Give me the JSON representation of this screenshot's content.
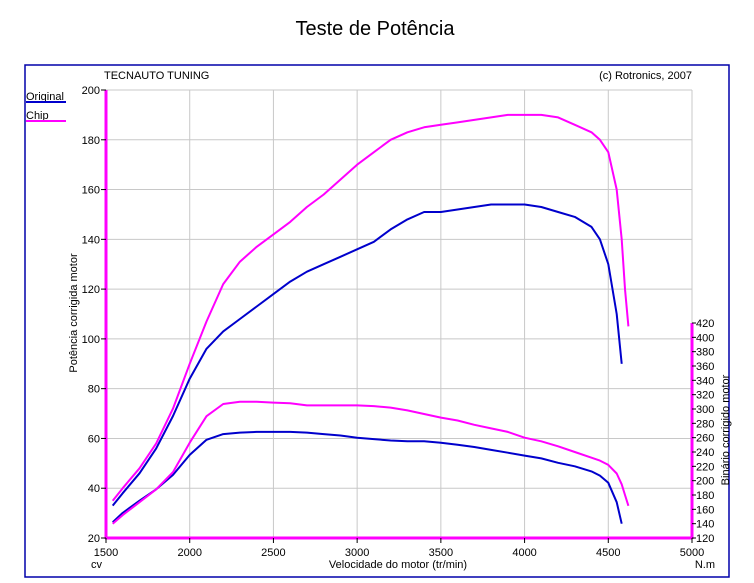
{
  "page": {
    "title": "Teste de Potência",
    "header_left": "TECNAUTO TUNING",
    "header_right": "(c) Rotronics, 2007"
  },
  "legend": [
    {
      "label": "Original",
      "color": "#0000cc"
    },
    {
      "label": "Chip",
      "color": "#ff00ff"
    }
  ],
  "colors": {
    "frame": "#0000aa",
    "grid": "#c8c8c8",
    "axis_magenta": "#ff00ff",
    "original": "#0000cc",
    "chip": "#ff00ff"
  },
  "chart_data": {
    "type": "line",
    "title": "Teste de Potência",
    "xlabel": "Velocidade do motor (tr/min)",
    "x_unit_left": "cv",
    "x_unit_right": "N.m",
    "ylabel_left": "Potência corrigida motor",
    "ylabel_right": "Binário corrigido motor",
    "xlim": [
      1500,
      5000
    ],
    "ylim_left": [
      20,
      200
    ],
    "ylim_right": [
      120,
      420
    ],
    "x_ticks": [
      1500,
      2000,
      2500,
      3000,
      3500,
      4000,
      4500,
      5000
    ],
    "y_ticks_left": [
      20,
      40,
      60,
      80,
      100,
      120,
      140,
      160,
      180,
      200
    ],
    "y_ticks_right": [
      120,
      140,
      160,
      180,
      200,
      220,
      240,
      260,
      280,
      300,
      320,
      340,
      360,
      380,
      400,
      420
    ],
    "grid": true,
    "legend_position": "top-left",
    "series": [
      {
        "name": "Original",
        "quantity": "power",
        "axis": "left",
        "color": "#0000cc",
        "x": [
          1540,
          1600,
          1700,
          1800,
          1900,
          2000,
          2100,
          2200,
          2300,
          2400,
          2500,
          2600,
          2700,
          2800,
          2900,
          3000,
          3100,
          3200,
          3300,
          3400,
          3500,
          3600,
          3700,
          3800,
          3900,
          4000,
          4100,
          4200,
          4300,
          4400,
          4450,
          4500,
          4550,
          4580
        ],
        "y": [
          33,
          38,
          46,
          56,
          69,
          84,
          96,
          103,
          108,
          113,
          118,
          123,
          127,
          130,
          133,
          136,
          139,
          144,
          148,
          151,
          151,
          152,
          153,
          154,
          154,
          154,
          153,
          151,
          149,
          145,
          140,
          130,
          110,
          90
        ]
      },
      {
        "name": "Chip",
        "quantity": "power",
        "axis": "left",
        "color": "#ff00ff",
        "x": [
          1540,
          1600,
          1700,
          1800,
          1900,
          2000,
          2100,
          2200,
          2300,
          2400,
          2500,
          2600,
          2700,
          2800,
          2900,
          3000,
          3100,
          3200,
          3300,
          3400,
          3500,
          3600,
          3700,
          3800,
          3900,
          4000,
          4100,
          4200,
          4300,
          4400,
          4450,
          4500,
          4550,
          4580,
          4600,
          4620
        ],
        "y": [
          35,
          40,
          48,
          58,
          72,
          90,
          107,
          122,
          131,
          137,
          142,
          147,
          153,
          158,
          164,
          170,
          175,
          180,
          183,
          185,
          186,
          187,
          188,
          189,
          190,
          190,
          190,
          189,
          186,
          183,
          180,
          175,
          160,
          140,
          120,
          105
        ]
      },
      {
        "name": "Original",
        "quantity": "torque",
        "axis": "right",
        "color": "#0000cc",
        "x": [
          1540,
          1600,
          1700,
          1800,
          1900,
          2000,
          2100,
          2200,
          2300,
          2400,
          2500,
          2600,
          2700,
          2800,
          2900,
          3000,
          3100,
          3200,
          3300,
          3400,
          3500,
          3600,
          3700,
          3800,
          3900,
          4000,
          4100,
          4200,
          4300,
          4400,
          4450,
          4500,
          4550,
          4580
        ],
        "y": [
          142,
          155,
          172,
          188,
          208,
          236,
          257,
          265,
          267,
          268,
          268,
          268,
          267,
          265,
          263,
          260,
          258,
          256,
          255,
          255,
          253,
          250,
          247,
          243,
          239,
          235,
          231,
          225,
          220,
          213,
          207,
          197,
          170,
          140
        ]
      },
      {
        "name": "Chip",
        "quantity": "torque",
        "axis": "right",
        "color": "#ff00ff",
        "x": [
          1540,
          1600,
          1700,
          1800,
          1900,
          2000,
          2100,
          2200,
          2300,
          2400,
          2500,
          2600,
          2700,
          2800,
          2900,
          3000,
          3100,
          3200,
          3300,
          3400,
          3500,
          3600,
          3700,
          3800,
          3900,
          4000,
          4100,
          4200,
          4300,
          4400,
          4450,
          4500,
          4550,
          4580,
          4600,
          4620
        ],
        "y": [
          140,
          152,
          170,
          188,
          212,
          253,
          290,
          307,
          310,
          310,
          309,
          308,
          305,
          305,
          305,
          305,
          304,
          302,
          298,
          293,
          288,
          284,
          278,
          273,
          268,
          260,
          255,
          248,
          240,
          232,
          228,
          222,
          210,
          195,
          180,
          165
        ]
      }
    ]
  }
}
